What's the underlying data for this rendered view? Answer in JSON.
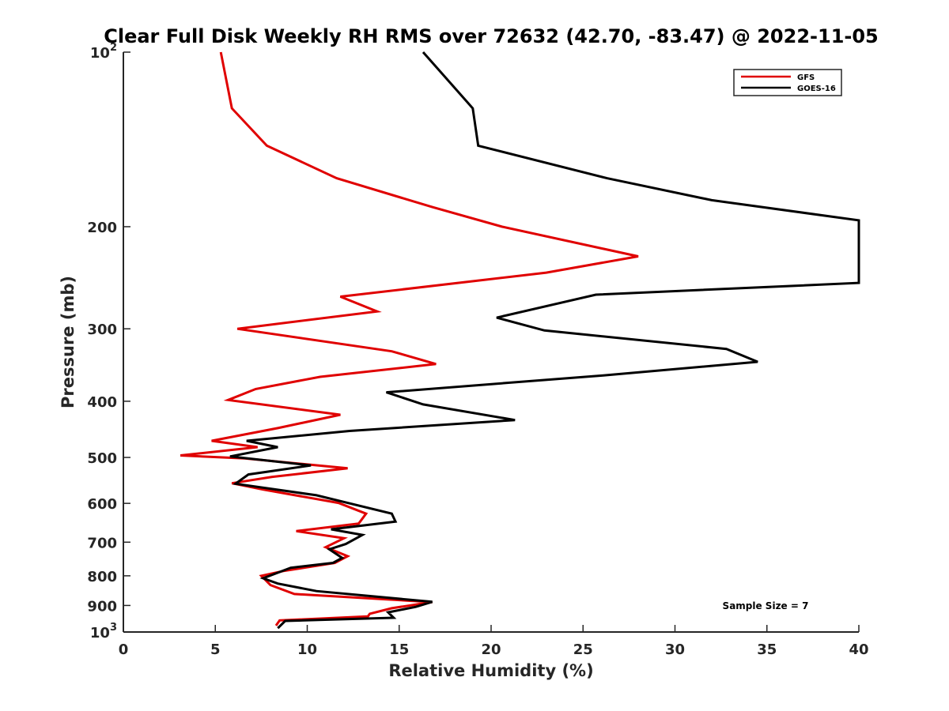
{
  "chart_data": {
    "type": "line",
    "title": "Clear Full Disk Weekly RH RMS over 72632 (42.70, -83.47) @ 2022-11-05",
    "xlabel": "Relative Humidity (%)",
    "ylabel": "Pressure (mb)",
    "xlim": [
      0,
      40
    ],
    "ylim": [
      100,
      1000
    ],
    "y_scale": "log",
    "y_reversed": true,
    "xticks": [
      "0",
      "5",
      "10",
      "15",
      "20",
      "25",
      "30",
      "35",
      "40"
    ],
    "yticks": [
      {
        "value": 100,
        "label": "10",
        "sup": "2"
      },
      {
        "value": 200,
        "label": "200",
        "sup": ""
      },
      {
        "value": 300,
        "label": "300",
        "sup": ""
      },
      {
        "value": 400,
        "label": "400",
        "sup": ""
      },
      {
        "value": 500,
        "label": "500",
        "sup": ""
      },
      {
        "value": 600,
        "label": "600",
        "sup": ""
      },
      {
        "value": 700,
        "label": "700",
        "sup": ""
      },
      {
        "value": 800,
        "label": "800",
        "sup": ""
      },
      {
        "value": 900,
        "label": "900",
        "sup": ""
      },
      {
        "value": 1000,
        "label": "10",
        "sup": "3"
      }
    ],
    "legend_position": "top-right",
    "grid": false,
    "annotation": "Sample Size = 7",
    "series": [
      {
        "name": "GFS",
        "color": "#e00000",
        "points": [
          [
            5.3,
            100
          ],
          [
            5.9,
            125
          ],
          [
            7.8,
            145
          ],
          [
            11.6,
            165
          ],
          [
            16.8,
            185
          ],
          [
            20.6,
            200
          ],
          [
            28.0,
            225
          ],
          [
            23.0,
            240
          ],
          [
            11.8,
            264
          ],
          [
            13.8,
            280
          ],
          [
            6.2,
            300
          ],
          [
            14.6,
            328
          ],
          [
            17.0,
            345
          ],
          [
            10.7,
            363
          ],
          [
            7.2,
            381
          ],
          [
            5.7,
            398
          ],
          [
            11.8,
            422
          ],
          [
            8.4,
            445
          ],
          [
            4.8,
            468
          ],
          [
            7.3,
            480
          ],
          [
            3.1,
            496
          ],
          [
            6.6,
            502
          ],
          [
            12.2,
            522
          ],
          [
            8.1,
            540
          ],
          [
            5.9,
            554
          ],
          [
            7.6,
            568
          ],
          [
            11.7,
            599
          ],
          [
            13.2,
            625
          ],
          [
            12.8,
            650
          ],
          [
            9.4,
            670
          ],
          [
            12.0,
            689
          ],
          [
            11.0,
            714
          ],
          [
            12.2,
            740
          ],
          [
            11.5,
            760
          ],
          [
            8.7,
            785
          ],
          [
            7.5,
            800
          ],
          [
            8.0,
            830
          ],
          [
            9.3,
            860
          ],
          [
            16.8,
            888
          ],
          [
            14.6,
            910
          ],
          [
            13.4,
            930
          ],
          [
            13.3,
            940
          ],
          [
            8.5,
            955
          ],
          [
            8.3,
            975
          ]
        ]
      },
      {
        "name": "GOES-16",
        "color": "#000000",
        "points": [
          [
            16.3,
            100
          ],
          [
            19.0,
            125
          ],
          [
            19.3,
            145
          ],
          [
            26.3,
            165
          ],
          [
            32.0,
            180
          ],
          [
            40.0,
            195
          ],
          [
            40.0,
            250
          ],
          [
            25.7,
            262
          ],
          [
            20.3,
            287
          ],
          [
            22.9,
            302
          ],
          [
            32.8,
            325
          ],
          [
            34.5,
            342
          ],
          [
            26.1,
            361
          ],
          [
            14.3,
            386
          ],
          [
            16.3,
            405
          ],
          [
            21.3,
            431
          ],
          [
            12.3,
            450
          ],
          [
            6.7,
            468
          ],
          [
            8.4,
            480
          ],
          [
            5.8,
            498
          ],
          [
            10.2,
            516
          ],
          [
            6.8,
            535
          ],
          [
            6.1,
            555
          ],
          [
            10.5,
            581
          ],
          [
            14.6,
            625
          ],
          [
            14.8,
            645
          ],
          [
            11.3,
            665
          ],
          [
            13.0,
            680
          ],
          [
            12.1,
            705
          ],
          [
            11.2,
            720
          ],
          [
            11.9,
            745
          ],
          [
            11.4,
            760
          ],
          [
            9.1,
            775
          ],
          [
            7.6,
            808
          ],
          [
            8.4,
            825
          ],
          [
            10.5,
            850
          ],
          [
            16.8,
            887
          ],
          [
            15.9,
            905
          ],
          [
            14.4,
            925
          ],
          [
            14.7,
            945
          ],
          [
            8.8,
            957
          ],
          [
            8.4,
            985
          ]
        ]
      }
    ]
  }
}
